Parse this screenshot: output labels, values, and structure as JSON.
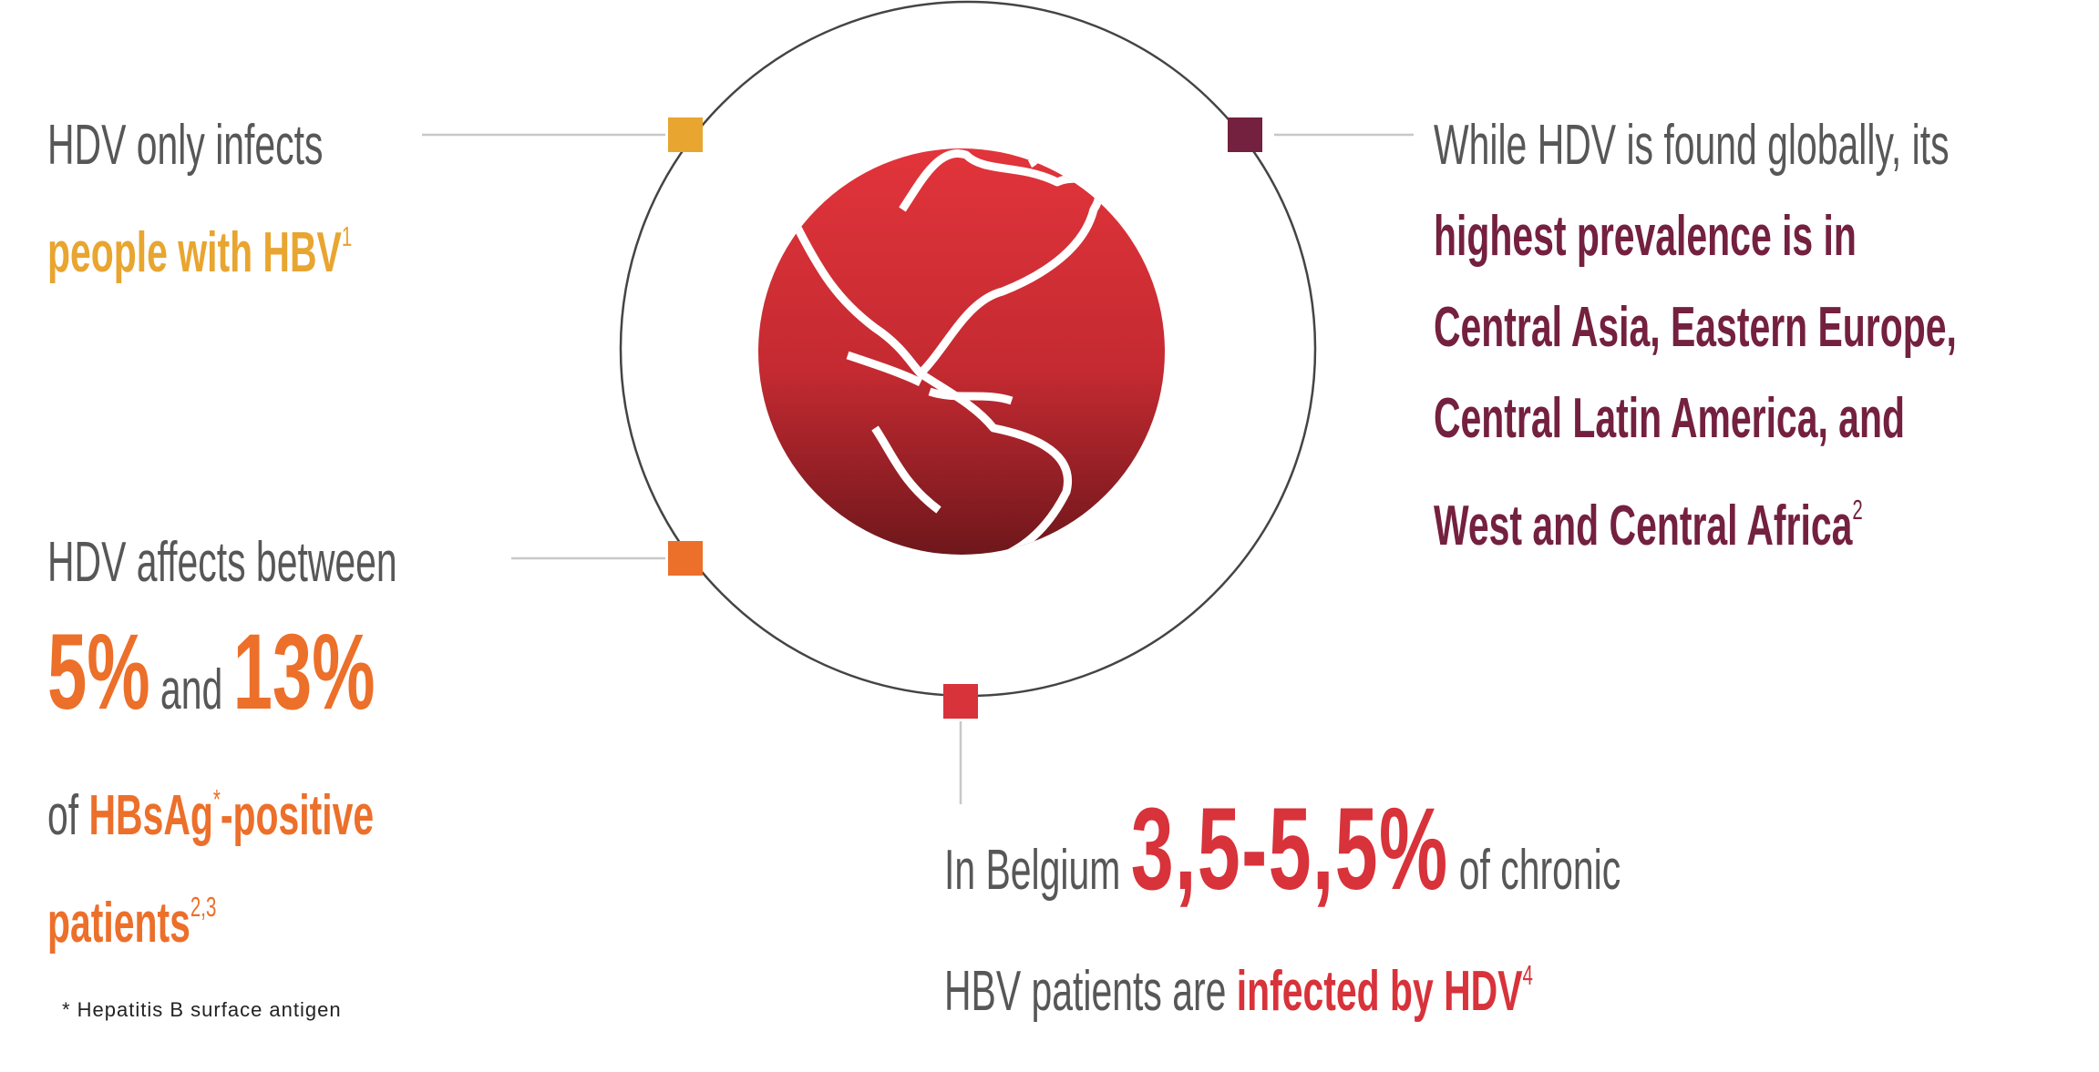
{
  "callouts": {
    "hbv_only": {
      "line1": "HDV only infects",
      "highlight": "people with HBV",
      "ref": "1"
    },
    "prevalence": {
      "line1": "While HDV is found globally, its",
      "highlight": [
        "highest prevalence is in",
        "Central Asia, Eastern Europe,",
        "Central Latin America, and",
        "West and Central Africa"
      ],
      "ref": "2"
    },
    "affects": {
      "line1": "HDV affects between",
      "low": "5%",
      "and": "and",
      "high": "13%",
      "of": "of",
      "antigen": "HBsAg",
      "star": "*",
      "suffix": "-positive",
      "patients": "patients",
      "ref": "2,3"
    },
    "belgium": {
      "prefix": "In Belgium",
      "range": "3,5-5,5%",
      "suffix": "of chronic",
      "line2": "HBV patients are",
      "highlight": "infected by HDV",
      "ref": "4"
    }
  },
  "footnote": "* Hepatitis B surface antigen"
}
